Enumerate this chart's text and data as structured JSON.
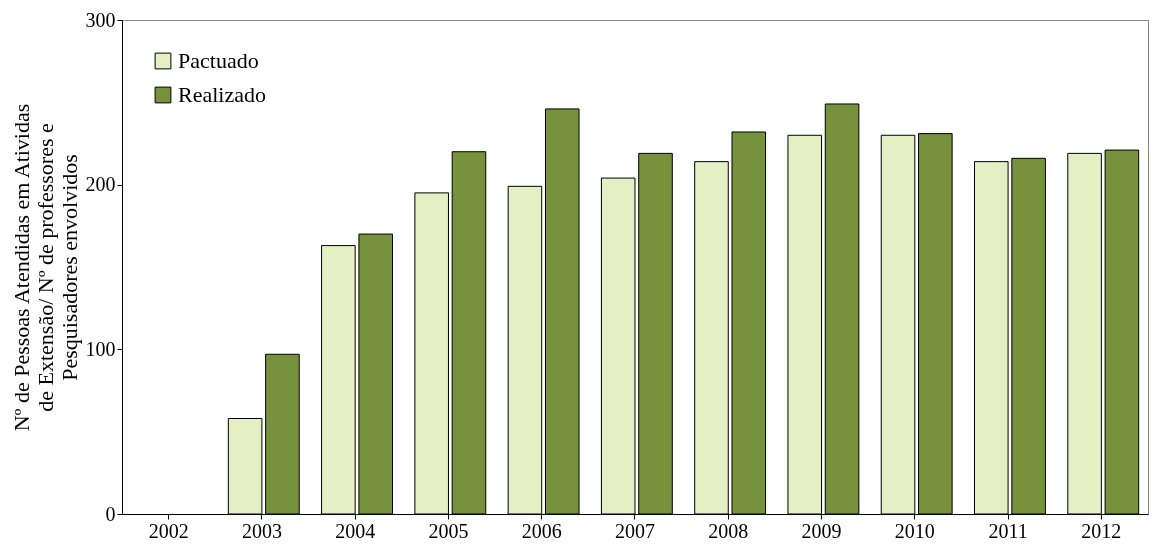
{
  "chart_data": {
    "type": "bar",
    "ylabel": "Nº de Pessoas Atendidas em Atividas de Extensão/ Nº de professores e Pesquisadores envolvidos",
    "categories": [
      "2002",
      "2003",
      "2004",
      "2005",
      "2006",
      "2007",
      "2008",
      "2009",
      "2010",
      "2011",
      "2012"
    ],
    "series": [
      {
        "name": "Pactuado",
        "color": "#e4efc4",
        "values": [
          null,
          58,
          163,
          195,
          199,
          204,
          214,
          230,
          230,
          214,
          219
        ]
      },
      {
        "name": "Realizado",
        "color": "#76923c",
        "values": [
          null,
          97,
          170,
          220,
          246,
          219,
          232,
          249,
          231,
          216,
          221
        ]
      }
    ],
    "ylim": [
      0,
      300
    ],
    "yticks": [
      0,
      100,
      200,
      300
    ],
    "grid": false,
    "legend": "top left"
  }
}
